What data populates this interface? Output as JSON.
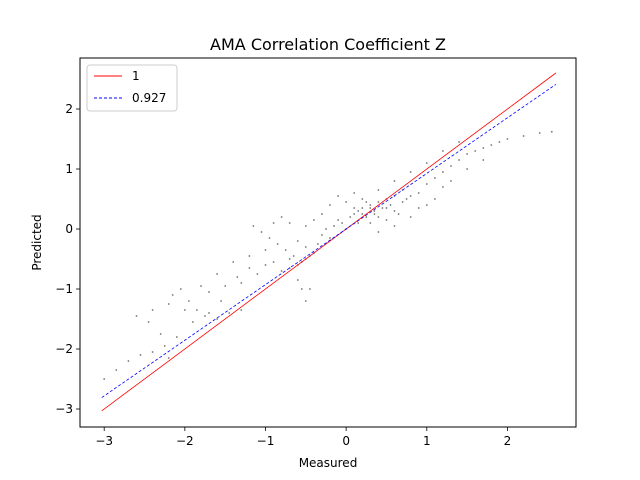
{
  "chart_data": {
    "type": "scatter",
    "title": "AMA Correlation Coefficient Z",
    "xlabel": "Measured",
    "ylabel": "Predicted",
    "xlim": [
      -3.3,
      2.85
    ],
    "ylim": [
      -3.3,
      2.85
    ],
    "xticks": [
      -3,
      -2,
      -1,
      0,
      1,
      2
    ],
    "yticks": [
      -3,
      -2,
      -1,
      0,
      1,
      2
    ],
    "xtick_labels": [
      "−3",
      "−2",
      "−1",
      "0",
      "1",
      "2"
    ],
    "ytick_labels": [
      "−3",
      "−2",
      "−1",
      "0",
      "1",
      "2"
    ],
    "grid": false,
    "legend_placement": "upper-left",
    "lines": [
      {
        "name": "1",
        "color": "#ff0000",
        "style": "solid",
        "slope": 1.0,
        "intercept": 0.0,
        "x": [
          -3.03,
          2.6
        ]
      },
      {
        "name": "0.927",
        "color": "#0000ff",
        "style": "dashed",
        "slope": 0.927,
        "intercept": 0.0,
        "x": [
          -3.03,
          2.6
        ]
      }
    ],
    "scatter": {
      "color": "#000000",
      "points": [
        [
          -3.0,
          -2.5
        ],
        [
          -2.85,
          -2.35
        ],
        [
          -2.7,
          -2.2
        ],
        [
          -2.55,
          -2.1
        ],
        [
          -2.4,
          -2.05
        ],
        [
          -2.25,
          -1.95
        ],
        [
          -2.2,
          -2.15
        ],
        [
          -2.1,
          -1.8
        ],
        [
          -2.3,
          -1.75
        ],
        [
          -2.45,
          -1.55
        ],
        [
          -2.6,
          -1.45
        ],
        [
          -2.4,
          -1.35
        ],
        [
          -2.2,
          -1.25
        ],
        [
          -2.15,
          -1.1
        ],
        [
          -2.05,
          -1.0
        ],
        [
          -1.95,
          -1.2
        ],
        [
          -1.85,
          -1.35
        ],
        [
          -1.75,
          -1.45
        ],
        [
          -1.6,
          -1.5
        ],
        [
          -1.45,
          -1.4
        ],
        [
          -1.3,
          -1.35
        ],
        [
          -1.55,
          -1.2
        ],
        [
          -1.7,
          -1.05
        ],
        [
          -1.5,
          -0.95
        ],
        [
          -1.3,
          -0.9
        ],
        [
          -1.1,
          -0.75
        ],
        [
          -1.2,
          -0.65
        ],
        [
          -1.35,
          -0.8
        ],
        [
          -1.0,
          -0.6
        ],
        [
          -0.9,
          -0.55
        ],
        [
          -0.8,
          -0.7
        ],
        [
          -0.7,
          -0.5
        ],
        [
          -0.6,
          -0.85
        ],
        [
          -0.55,
          -1.0
        ],
        [
          -0.5,
          -1.2
        ],
        [
          -0.45,
          -1.0
        ],
        [
          -0.65,
          -0.45
        ],
        [
          -0.75,
          -0.35
        ],
        [
          -0.85,
          -0.25
        ],
        [
          -0.95,
          -0.15
        ],
        [
          -1.05,
          -0.05
        ],
        [
          -1.15,
          0.05
        ],
        [
          -0.6,
          -0.2
        ],
        [
          -0.5,
          -0.3
        ],
        [
          -0.4,
          -0.4
        ],
        [
          -0.35,
          -0.25
        ],
        [
          -0.3,
          -0.1
        ],
        [
          -0.25,
          0.0
        ],
        [
          -0.2,
          -0.15
        ],
        [
          -0.15,
          0.05
        ],
        [
          -0.1,
          0.15
        ],
        [
          -0.05,
          0.1
        ],
        [
          0.0,
          0.0
        ],
        [
          0.05,
          0.2
        ],
        [
          0.1,
          0.25
        ],
        [
          0.15,
          0.3
        ],
        [
          0.2,
          0.35
        ],
        [
          0.25,
          0.45
        ],
        [
          0.3,
          0.4
        ],
        [
          0.35,
          0.3
        ],
        [
          0.4,
          0.2
        ],
        [
          0.45,
          0.35
        ],
        [
          0.5,
          0.5
        ],
        [
          0.55,
          0.4
        ],
        [
          0.6,
          0.3
        ],
        [
          0.65,
          0.25
        ],
        [
          0.7,
          0.45
        ],
        [
          0.8,
          0.55
        ],
        [
          0.9,
          0.6
        ],
        [
          1.0,
          0.75
        ],
        [
          1.1,
          0.85
        ],
        [
          1.2,
          0.95
        ],
        [
          1.3,
          1.05
        ],
        [
          1.4,
          1.15
        ],
        [
          1.5,
          1.25
        ],
        [
          1.6,
          1.3
        ],
        [
          1.7,
          1.35
        ],
        [
          1.8,
          1.4
        ],
        [
          1.9,
          1.45
        ],
        [
          2.0,
          1.5
        ],
        [
          2.2,
          1.55
        ],
        [
          2.4,
          1.6
        ],
        [
          2.55,
          1.62
        ],
        [
          -0.2,
          0.4
        ],
        [
          -0.1,
          0.55
        ],
        [
          0.0,
          0.45
        ],
        [
          0.1,
          0.6
        ],
        [
          0.2,
          0.5
        ],
        [
          -0.3,
          0.25
        ],
        [
          -0.4,
          0.15
        ],
        [
          -0.5,
          0.05
        ],
        [
          -0.7,
          0.1
        ],
        [
          -0.8,
          0.2
        ],
        [
          -0.9,
          0.1
        ],
        [
          0.3,
          0.1
        ],
        [
          0.4,
          -0.05
        ],
        [
          0.5,
          0.15
        ],
        [
          0.6,
          0.05
        ],
        [
          0.8,
          0.2
        ],
        [
          0.9,
          0.35
        ],
        [
          1.0,
          0.4
        ],
        [
          1.1,
          0.5
        ],
        [
          1.2,
          0.7
        ],
        [
          1.3,
          0.8
        ],
        [
          1.5,
          1.0
        ],
        [
          1.7,
          1.15
        ],
        [
          1.4,
          1.45
        ],
        [
          1.2,
          1.3
        ],
        [
          1.0,
          1.1
        ],
        [
          0.8,
          0.95
        ],
        [
          0.6,
          0.8
        ],
        [
          0.4,
          0.65
        ],
        [
          -1.0,
          -0.35
        ],
        [
          -1.2,
          -0.45
        ],
        [
          -1.4,
          -0.55
        ],
        [
          -1.6,
          -0.75
        ],
        [
          -1.8,
          -0.95
        ],
        [
          -2.0,
          -1.35
        ],
        [
          -1.9,
          -1.55
        ],
        [
          -1.7,
          -1.4
        ],
        [
          -0.7,
          -0.65
        ],
        [
          -0.6,
          -0.6
        ],
        [
          -0.55,
          -0.55
        ],
        [
          -0.5,
          -0.5
        ],
        [
          -0.45,
          -0.45
        ],
        [
          0.15,
          0.1
        ],
        [
          0.25,
          0.2
        ],
        [
          0.35,
          0.25
        ],
        [
          0.1,
          0.35
        ],
        [
          0.2,
          0.25
        ],
        [
          0.3,
          0.35
        ],
        [
          0.4,
          0.45
        ],
        [
          0.5,
          0.35
        ],
        [
          0.6,
          0.55
        ],
        [
          0.7,
          0.65
        ],
        [
          0.75,
          0.5
        ]
      ]
    }
  }
}
